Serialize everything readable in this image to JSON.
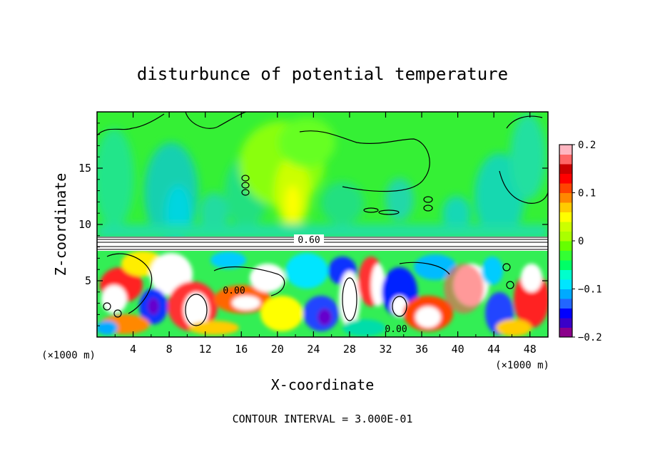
{
  "chart_data": {
    "type": "heatmap",
    "title": "disturbunce of potential temperature",
    "xlabel": "X-coordinate",
    "ylabel": "Z-coordinate",
    "x_unit_label": "(×1000 m)",
    "y_unit_label": "(×1000 m)",
    "xlim": [
      0,
      50
    ],
    "ylim": [
      0,
      20
    ],
    "x_ticks": [
      4,
      8,
      12,
      16,
      20,
      24,
      28,
      32,
      36,
      40,
      44,
      48
    ],
    "y_ticks": [
      5,
      10,
      15
    ],
    "colorbar": {
      "range": [
        -0.2,
        0.2
      ],
      "tick_values": [
        -0.2,
        -0.1,
        0,
        0.1,
        0.2
      ],
      "tick_labels": [
        "−0.2",
        "−0.1",
        "0",
        "0.1",
        "0.2"
      ],
      "colors": [
        "#8b008b",
        "#3a00c8",
        "#0000ff",
        "#2266ff",
        "#00aaff",
        "#00e5ff",
        "#00ffcc",
        "#00ff66",
        "#33ff33",
        "#66ff00",
        "#aaff00",
        "#ccff00",
        "#ffff00",
        "#ffcc00",
        "#ff8800",
        "#ff4400",
        "#ff0000",
        "#cc0000",
        "#ff6666",
        "#ffb6c1"
      ]
    },
    "contour_labels": [
      {
        "text": "0.60",
        "x": 20.5,
        "z": 8.6
      },
      {
        "text": "0.00",
        "x": 12.8,
        "z": 4.0
      },
      {
        "text": "0.00",
        "x": 26.8,
        "z": 0.6
      }
    ],
    "footnote": "CONTOUR INTERVAL = 3.000E-01",
    "grid": false,
    "legend": "colorbar-right"
  }
}
